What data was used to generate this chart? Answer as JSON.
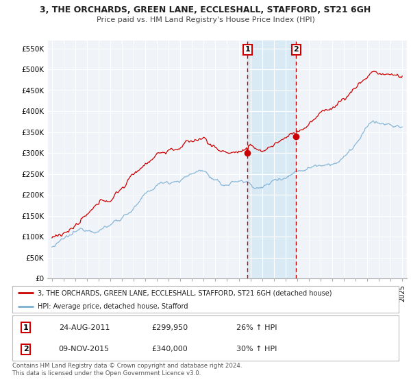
{
  "title": "3, THE ORCHARDS, GREEN LANE, ECCLESHALL, STAFFORD, ST21 6GH",
  "subtitle": "Price paid vs. HM Land Registry's House Price Index (HPI)",
  "ylabel_ticks": [
    "£0",
    "£50K",
    "£100K",
    "£150K",
    "£200K",
    "£250K",
    "£300K",
    "£350K",
    "£400K",
    "£450K",
    "£500K",
    "£550K"
  ],
  "ytick_values": [
    0,
    50000,
    100000,
    150000,
    200000,
    250000,
    300000,
    350000,
    400000,
    450000,
    500000,
    550000
  ],
  "ylim": [
    0,
    570000
  ],
  "x_start_year": 1995,
  "x_end_year": 2025,
  "legend_line1": "3, THE ORCHARDS, GREEN LANE, ECCLESHALL, STAFFORD, ST21 6GH (detached house)",
  "legend_line2": "HPI: Average price, detached house, Stafford",
  "annotation1": {
    "label": "1",
    "date": "24-AUG-2011",
    "price": "£299,950",
    "pct": "26% ↑ HPI"
  },
  "annotation2": {
    "label": "2",
    "date": "09-NOV-2015",
    "price": "£340,000",
    "pct": "30% ↑ HPI"
  },
  "footnote": "Contains HM Land Registry data © Crown copyright and database right 2024.\nThis data is licensed under the Open Government Licence v3.0.",
  "red_line_color": "#cc0000",
  "blue_line_color": "#7bafd4",
  "vline_color": "#cc0000",
  "highlight_color": "#daeaf5",
  "annotation_box_color": "#ffffff",
  "annotation_box_border": "#cc0000",
  "background_color": "#ffffff",
  "plot_bg_color": "#f0f4f8",
  "grid_color": "#ffffff",
  "date1_year": 2011.75,
  "date2_year": 2015.92,
  "sale1_price": 299950,
  "sale2_price": 340000
}
